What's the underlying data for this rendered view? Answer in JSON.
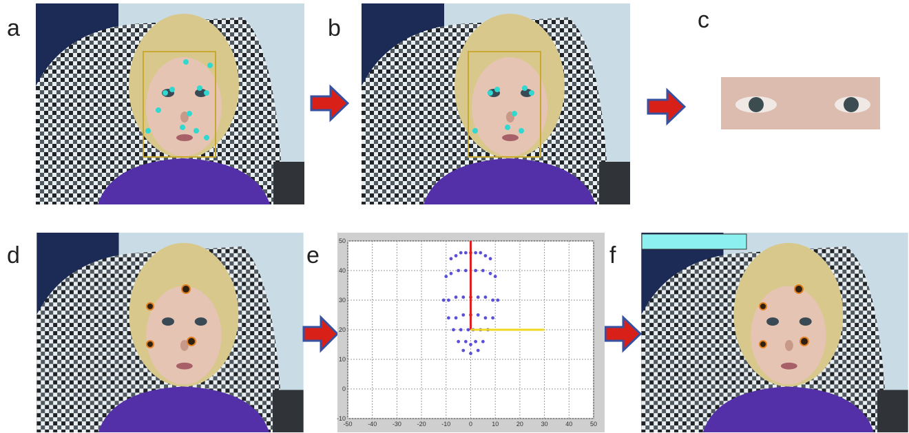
{
  "labels": [
    "a",
    "b",
    "c",
    "d",
    "e",
    "f"
  ],
  "plot": {
    "xlim": [
      -50,
      50
    ],
    "ylim": [
      -10,
      50
    ],
    "xticks": [
      -50,
      -40,
      -30,
      -20,
      -10,
      0,
      10,
      20,
      30,
      40,
      50
    ],
    "yticks": [
      -10,
      0,
      10,
      20,
      30,
      40,
      50
    ],
    "grid": true,
    "points": {
      "color": "#5a50d8",
      "x": [
        -8,
        -6,
        -4,
        -2,
        0,
        2,
        4,
        6,
        8,
        -10,
        -8,
        -5,
        -2,
        2,
        5,
        8,
        10,
        -11,
        -9,
        -6,
        -3,
        0,
        3,
        6,
        9,
        11,
        -9,
        -6,
        -3,
        0,
        3,
        6,
        9,
        -7,
        -4,
        -1,
        1,
        4,
        7,
        -5,
        -2,
        0,
        2,
        5,
        -3,
        0,
        3
      ],
      "y": [
        44,
        45,
        46,
        46,
        46,
        46,
        46,
        45,
        44,
        38,
        39,
        40,
        40,
        40,
        40,
        39,
        38,
        30,
        30,
        31,
        31,
        31,
        31,
        31,
        30,
        30,
        24,
        24,
        25,
        25,
        25,
        24,
        24,
        20,
        20,
        20,
        20,
        20,
        20,
        16,
        16,
        15,
        16,
        16,
        13,
        12,
        13
      ]
    },
    "lines": [
      {
        "color": "#e02020",
        "x": [
          0,
          0
        ],
        "y": [
          20,
          50
        ]
      },
      {
        "color": "#f0d820",
        "x": [
          0,
          30
        ],
        "y": [
          20,
          20
        ]
      }
    ]
  }
}
